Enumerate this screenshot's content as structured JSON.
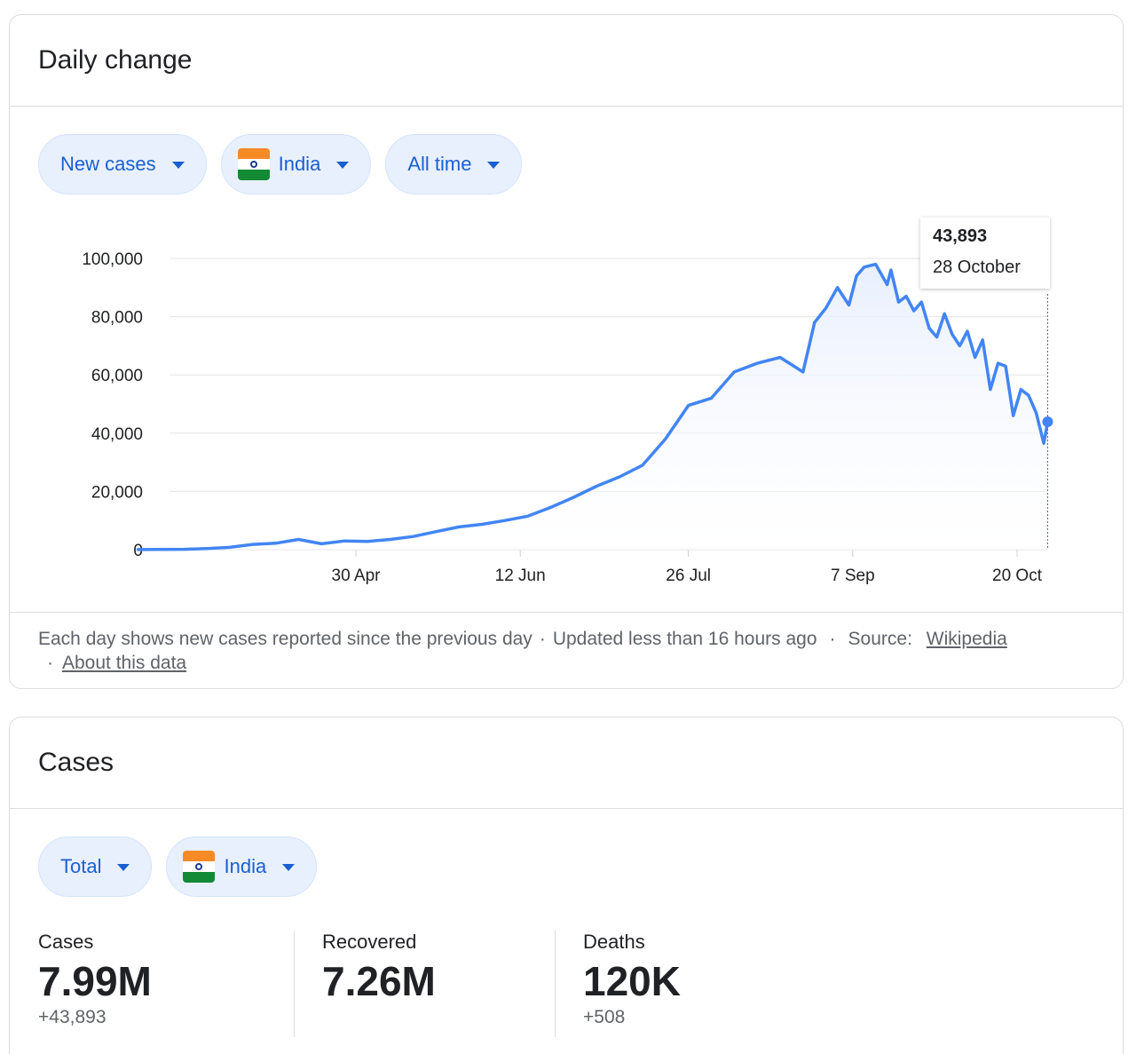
{
  "daily_card": {
    "title": "Daily change",
    "chips": [
      {
        "label": "New cases"
      },
      {
        "label": "India"
      },
      {
        "label": "All time"
      }
    ],
    "tooltip": {
      "value": "43,893",
      "date": "28 October"
    },
    "footer": {
      "note": "Each day shows new cases reported since the previous day",
      "updated": "Updated less than 16 hours ago",
      "source_label": "Source:",
      "source_link": "Wikipedia",
      "about_link": "About this data",
      "separator": "·"
    }
  },
  "cases_card": {
    "title": "Cases",
    "chips": [
      {
        "label": "Total"
      },
      {
        "label": "India"
      }
    ],
    "stats": [
      {
        "label": "Cases",
        "value": "7.99M",
        "delta": "+43,893"
      },
      {
        "label": "Recovered",
        "value": "7.26M",
        "delta": ""
      },
      {
        "label": "Deaths",
        "value": "120K",
        "delta": "+508"
      }
    ]
  },
  "colors": {
    "line": "#4285f4",
    "area_top": "#e8effd",
    "chip_bg": "#e8f0fe",
    "chip_text": "#1a5fd0",
    "flag_saffron": "#f58a26",
    "flag_green": "#138a36"
  },
  "chart_data": {
    "type": "area",
    "title": "",
    "xlabel": "",
    "ylabel": "",
    "ylim": [
      0,
      100000
    ],
    "yticks": [
      0,
      20000,
      40000,
      60000,
      80000,
      100000
    ],
    "ytick_labels": [
      "0",
      "20,000",
      "40,000",
      "60,000",
      "80,000",
      "100,000"
    ],
    "xtick_labels": [
      "30 Apr",
      "12 Jun",
      "26 Jul",
      "7 Sep",
      "20 Oct"
    ],
    "xtick_dates": [
      "2020-04-30",
      "2020-06-12",
      "2020-07-26",
      "2020-09-07",
      "2020-10-20"
    ],
    "grid": true,
    "highlight": {
      "x": "2020-10-28",
      "y": 43893
    },
    "series": [
      {
        "x": [
          "2020-03-04",
          "2020-03-10",
          "2020-03-16",
          "2020-03-22",
          "2020-03-28",
          "2020-04-03",
          "2020-04-09",
          "2020-04-15",
          "2020-04-21",
          "2020-04-27",
          "2020-05-03",
          "2020-05-09",
          "2020-05-15",
          "2020-05-21",
          "2020-05-27",
          "2020-06-02",
          "2020-06-08",
          "2020-06-14",
          "2020-06-20",
          "2020-06-26",
          "2020-07-02",
          "2020-07-08",
          "2020-07-14",
          "2020-07-20",
          "2020-07-26",
          "2020-08-01",
          "2020-08-07",
          "2020-08-13",
          "2020-08-19",
          "2020-08-25",
          "2020-08-28",
          "2020-08-31",
          "2020-09-03",
          "2020-09-06",
          "2020-09-08",
          "2020-09-10",
          "2020-09-13",
          "2020-09-16",
          "2020-09-17",
          "2020-09-19",
          "2020-09-21",
          "2020-09-23",
          "2020-09-25",
          "2020-09-27",
          "2020-09-29",
          "2020-10-01",
          "2020-10-03",
          "2020-10-05",
          "2020-10-07",
          "2020-10-09",
          "2020-10-11",
          "2020-10-13",
          "2020-10-15",
          "2020-10-17",
          "2020-10-19",
          "2020-10-21",
          "2020-10-23",
          "2020-10-25",
          "2020-10-27",
          "2020-10-28"
        ],
        "values": [
          30,
          80,
          120,
          400,
          800,
          1800,
          2200,
          3500,
          2000,
          3000,
          2800,
          3500,
          4500,
          6200,
          7800,
          8700,
          10000,
          11500,
          14500,
          18000,
          21800,
          25000,
          29000,
          38000,
          49500,
          52000,
          61000,
          64000,
          66000,
          61000,
          78000,
          83000,
          90000,
          84000,
          94000,
          97000,
          98000,
          91000,
          96000,
          85000,
          87000,
          82000,
          85000,
          76000,
          73000,
          81000,
          74000,
          70000,
          75000,
          66000,
          72000,
          55000,
          64000,
          63000,
          46000,
          55000,
          53000,
          47000,
          36500,
          43893
        ]
      }
    ]
  }
}
